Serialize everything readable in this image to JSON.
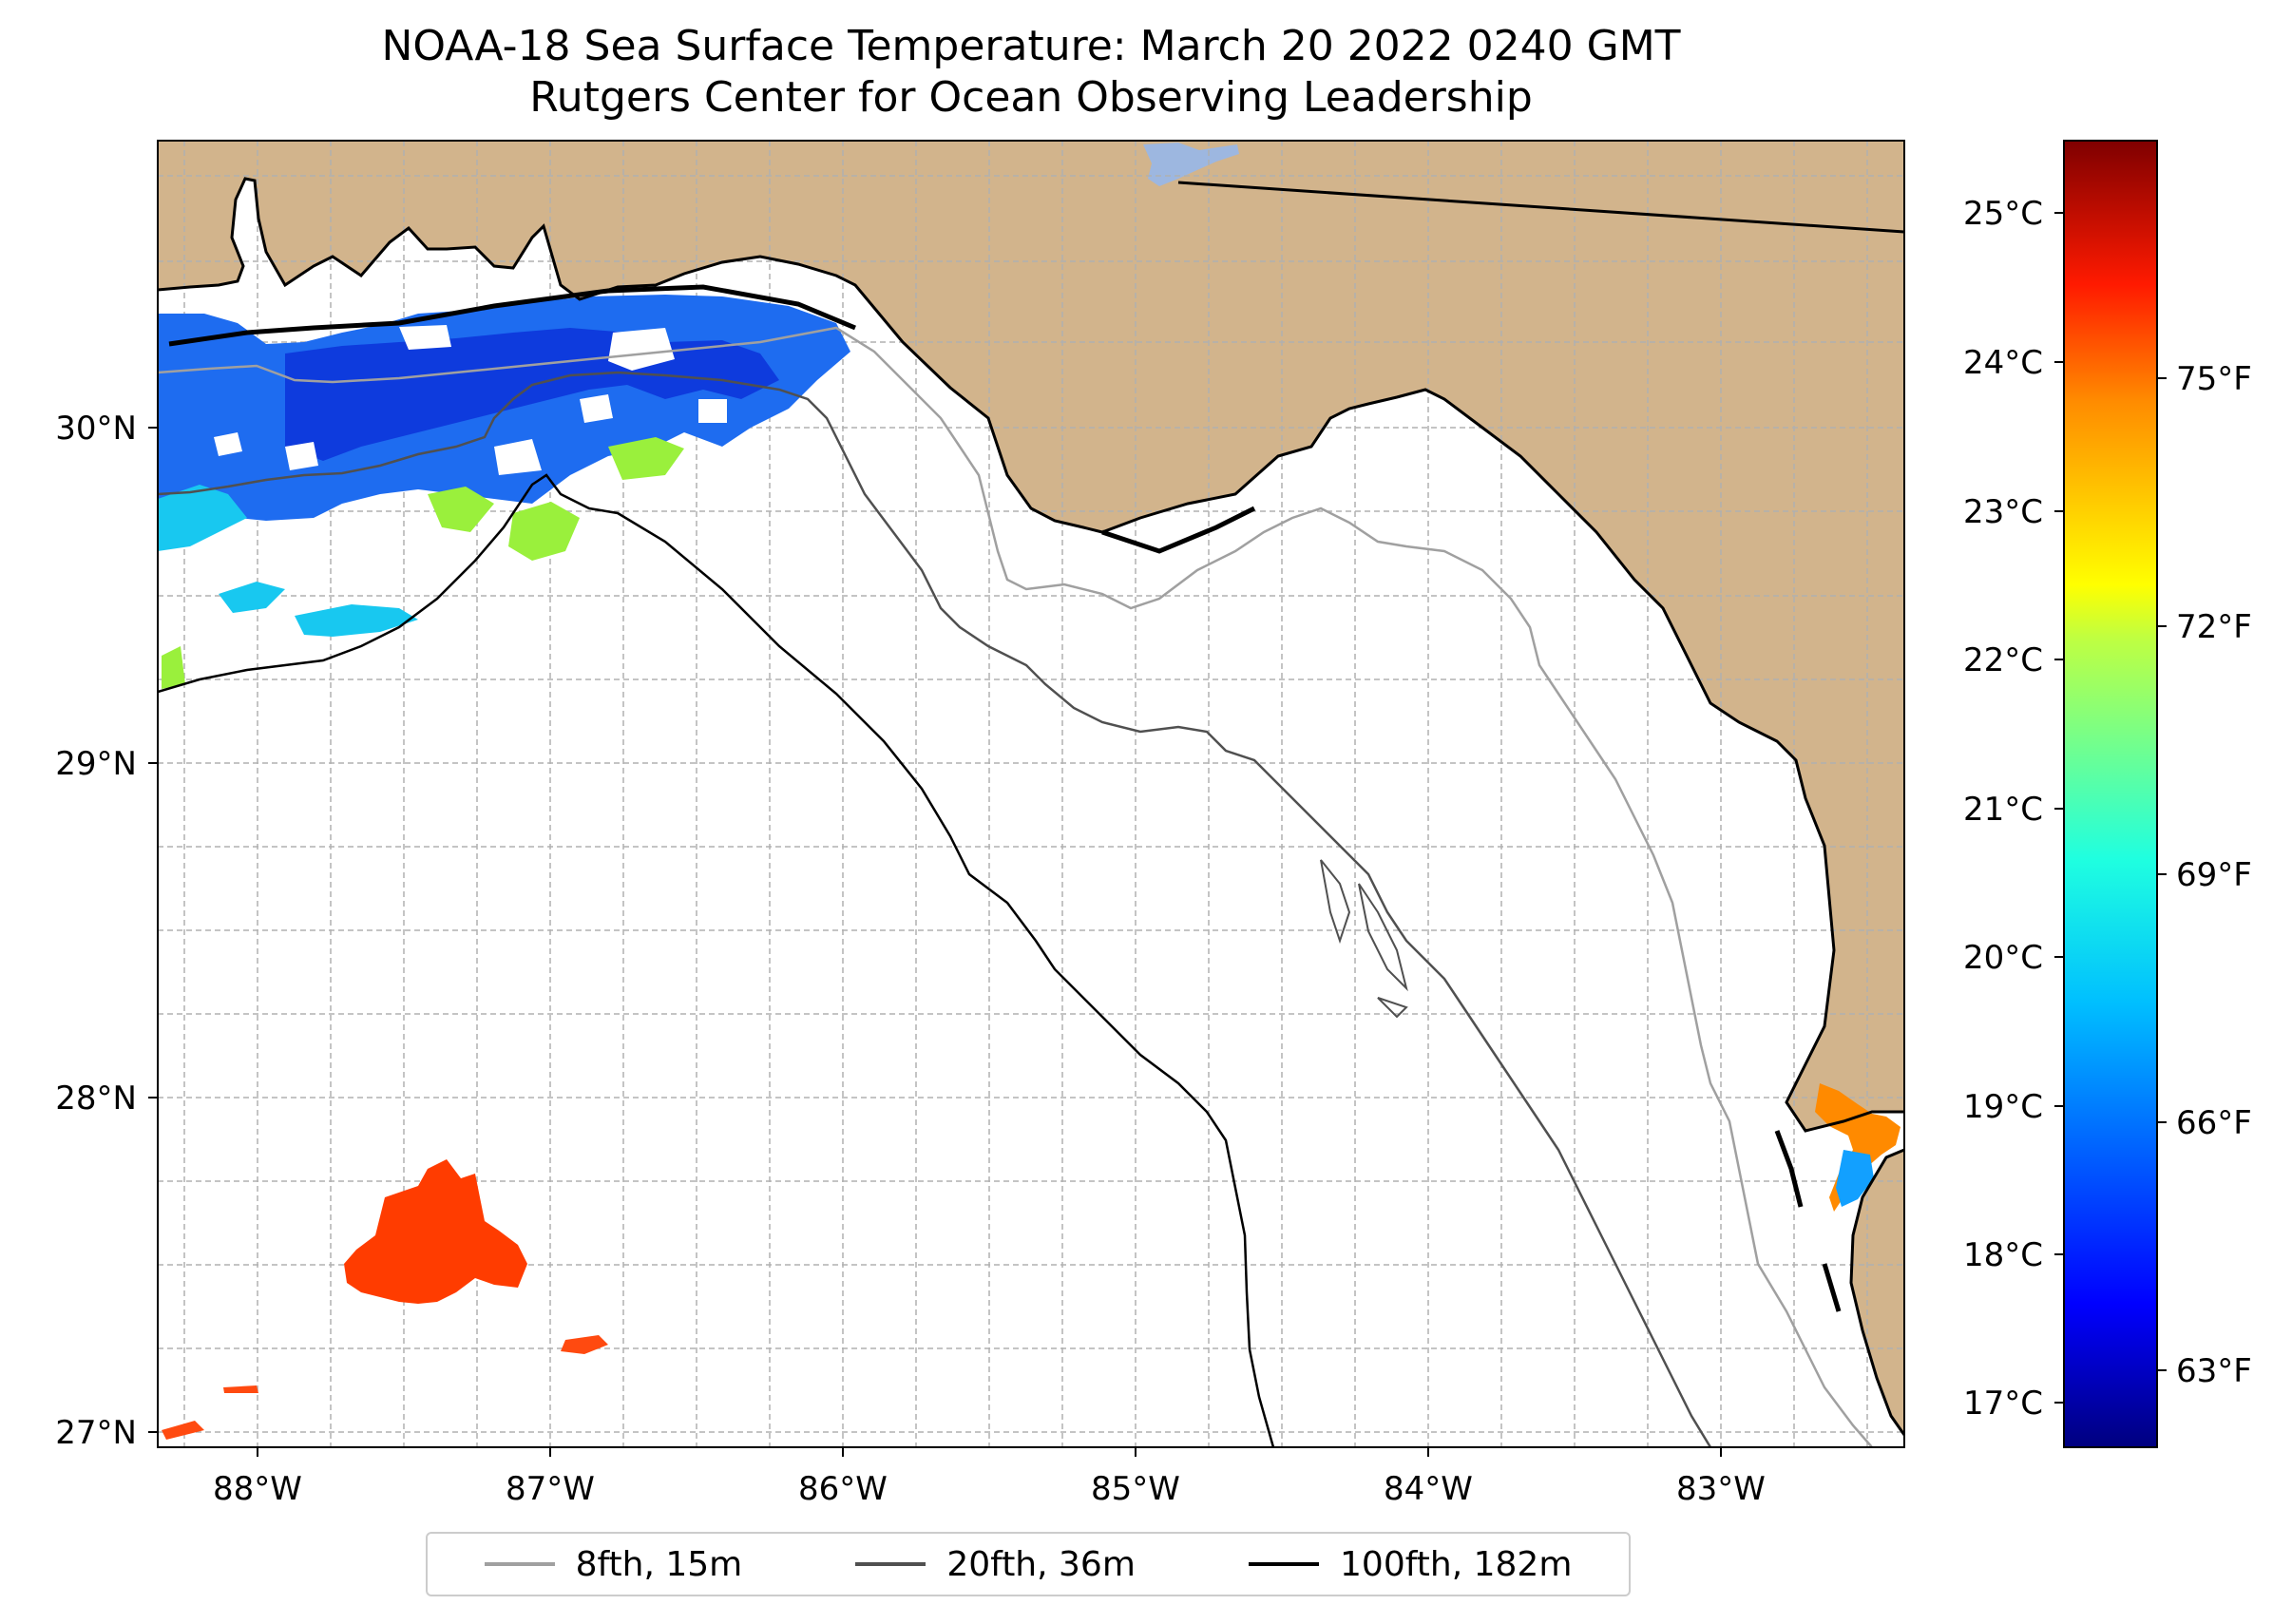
{
  "title": {
    "line1": "NOAA-18 Sea Surface Temperature: March 20 2022 0240 GMT",
    "line2": "Rutgers Center for Ocean Observing Leadership"
  },
  "map": {
    "lat_ticks": [
      "30°N",
      "29°N",
      "28°N",
      "27°N"
    ],
    "lon_ticks": [
      "88°W",
      "87°W",
      "86°W",
      "85°W",
      "84°W",
      "83°W"
    ],
    "colors": {
      "land": "#d2b48c",
      "water": "#ffffff",
      "grid": "#b0b0b0",
      "lake": "#9db7e0"
    }
  },
  "colorbar": {
    "celsius_ticks": [
      "25°C",
      "24°C",
      "23°C",
      "22°C",
      "21°C",
      "20°C",
      "19°C",
      "18°C",
      "17°C"
    ],
    "fahrenheit_ticks": [
      "75°F",
      "72°F",
      "69°F",
      "66°F",
      "63°F"
    ],
    "colormap": "jet"
  },
  "legend": {
    "items": [
      {
        "label": "8fth, 15m",
        "color": "#a0a0a0"
      },
      {
        "label": "20fth, 36m",
        "color": "#505050"
      },
      {
        "label": "100fth, 182m",
        "color": "#000000"
      }
    ]
  }
}
